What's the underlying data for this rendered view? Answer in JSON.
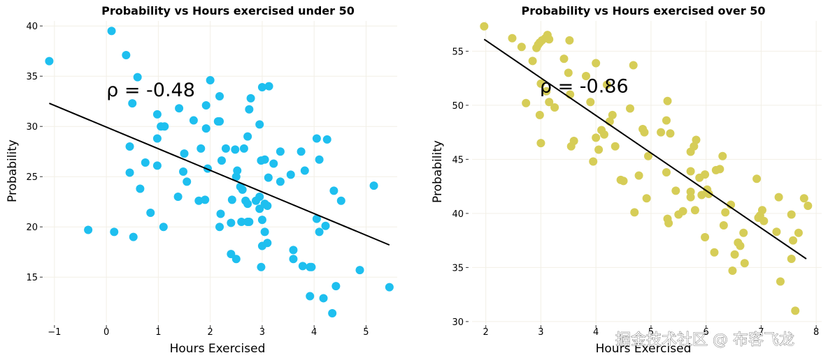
{
  "chart_data": [
    {
      "type": "scatter",
      "title": "Probability vs Hours exercised under 50",
      "xlabel": "Hours Exercised",
      "ylabel": "Probability",
      "xlim": [
        -1.2,
        5.6
      ],
      "ylim": [
        10.5,
        40.5
      ],
      "xticks": [
        -1,
        0,
        1,
        2,
        3,
        4,
        5
      ],
      "xtick_labels": [
        "−1",
        "0",
        "1",
        "2",
        "3",
        "4",
        "5"
      ],
      "yticks": [
        15,
        20,
        25,
        30,
        35,
        40
      ],
      "ytick_labels": [
        "15",
        "20",
        "25",
        "30",
        "35",
        "40"
      ],
      "grid": true,
      "point_color": "#1ebfef",
      "annotation": {
        "text": "ρ = -0.48",
        "x": 0.0,
        "y": 33.0
      },
      "regression_line": {
        "x": [
          -1.1,
          5.45
        ],
        "y": [
          32.3,
          18.2
        ],
        "color": "#000000"
      },
      "points": [
        [
          -1.1,
          36.5
        ],
        [
          0.1,
          39.5
        ],
        [
          0.38,
          37.1
        ],
        [
          0.6,
          34.9
        ],
        [
          0.5,
          32.3
        ],
        [
          -0.35,
          19.7
        ],
        [
          0.15,
          19.5
        ],
        [
          0.52,
          19.0
        ],
        [
          1.1,
          20.0
        ],
        [
          0.85,
          21.4
        ],
        [
          0.65,
          23.8
        ],
        [
          0.45,
          25.4
        ],
        [
          0.75,
          26.4
        ],
        [
          0.98,
          26.1
        ],
        [
          0.45,
          28.0
        ],
        [
          0.98,
          28.8
        ],
        [
          1.05,
          30.0
        ],
        [
          1.12,
          30.0
        ],
        [
          0.98,
          31.2
        ],
        [
          1.4,
          31.8
        ],
        [
          1.38,
          23.0
        ],
        [
          1.48,
          25.5
        ],
        [
          1.55,
          24.5
        ],
        [
          1.5,
          27.3
        ],
        [
          1.68,
          30.6
        ],
        [
          1.92,
          29.8
        ],
        [
          1.82,
          27.8
        ],
        [
          1.78,
          22.6
        ],
        [
          1.9,
          22.7
        ],
        [
          1.92,
          32.1
        ],
        [
          1.95,
          25.8
        ],
        [
          2.0,
          34.6
        ],
        [
          2.18,
          33.0
        ],
        [
          2.15,
          30.5
        ],
        [
          2.18,
          30.5
        ],
        [
          2.22,
          26.6
        ],
        [
          2.3,
          27.8
        ],
        [
          2.2,
          21.3
        ],
        [
          2.18,
          20.0
        ],
        [
          2.4,
          20.4
        ],
        [
          2.42,
          22.7
        ],
        [
          2.4,
          17.3
        ],
        [
          2.5,
          16.8
        ],
        [
          2.5,
          25.0
        ],
        [
          2.48,
          27.7
        ],
        [
          2.52,
          25.6
        ],
        [
          2.58,
          24.0
        ],
        [
          2.62,
          23.7
        ],
        [
          2.68,
          22.6
        ],
        [
          2.72,
          22.3
        ],
        [
          2.6,
          20.5
        ],
        [
          2.72,
          20.5
        ],
        [
          2.75,
          20.5
        ],
        [
          2.65,
          27.8
        ],
        [
          2.72,
          29.0
        ],
        [
          2.75,
          31.7
        ],
        [
          2.78,
          32.8
        ],
        [
          2.88,
          22.6
        ],
        [
          2.95,
          23.0
        ],
        [
          2.95,
          21.8
        ],
        [
          3.0,
          20.7
        ],
        [
          3.05,
          22.3
        ],
        [
          3.1,
          22.1
        ],
        [
          3.0,
          18.1
        ],
        [
          3.05,
          19.5
        ],
        [
          3.1,
          18.4
        ],
        [
          2.98,
          16.0
        ],
        [
          2.95,
          30.2
        ],
        [
          2.98,
          26.6
        ],
        [
          3.05,
          26.7
        ],
        [
          3.12,
          24.9
        ],
        [
          3.0,
          33.9
        ],
        [
          3.13,
          34.0
        ],
        [
          3.22,
          26.3
        ],
        [
          3.35,
          24.5
        ],
        [
          3.35,
          27.5
        ],
        [
          3.55,
          25.2
        ],
        [
          3.6,
          17.7
        ],
        [
          3.6,
          16.8
        ],
        [
          3.78,
          16.1
        ],
        [
          3.92,
          16.0
        ],
        [
          3.95,
          16.0
        ],
        [
          3.75,
          27.5
        ],
        [
          3.82,
          25.6
        ],
        [
          4.05,
          28.8
        ],
        [
          4.05,
          20.8
        ],
        [
          4.1,
          19.5
        ],
        [
          4.1,
          26.7
        ],
        [
          4.25,
          28.7
        ],
        [
          4.22,
          20.1
        ],
        [
          4.38,
          23.6
        ],
        [
          4.52,
          22.6
        ],
        [
          3.92,
          13.1
        ],
        [
          4.18,
          12.9
        ],
        [
          4.42,
          14.1
        ],
        [
          4.35,
          11.4
        ],
        [
          4.88,
          15.7
        ],
        [
          5.15,
          24.1
        ],
        [
          5.45,
          14.0
        ]
      ]
    },
    {
      "type": "scatter",
      "title": "Probability vs Hours exercised over 50",
      "xlabel": "Hours Exercised",
      "ylabel": "Probability",
      "xlim": [
        1.75,
        8.1
      ],
      "ylim": [
        29.8,
        57.8
      ],
      "xticks": [
        2,
        3,
        4,
        5,
        6,
        7,
        8
      ],
      "xtick_labels": [
        "2",
        "3",
        "4",
        "5",
        "6",
        "7",
        "8"
      ],
      "yticks": [
        30,
        35,
        40,
        45,
        50,
        55
      ],
      "ytick_labels": [
        "30",
        "35",
        "40",
        "45",
        "50",
        "55"
      ],
      "grid": true,
      "point_color": "#d6cd57",
      "annotation": {
        "text": "ρ = -0.86",
        "x": 2.98,
        "y": 51.2
      },
      "regression_line": {
        "x": [
          1.97,
          7.82
        ],
        "y": [
          56.1,
          35.8
        ],
        "color": "#000000"
      },
      "points": [
        [
          1.97,
          57.3
        ],
        [
          2.48,
          56.2
        ],
        [
          2.65,
          55.4
        ],
        [
          2.73,
          50.2
        ],
        [
          2.85,
          54.1
        ],
        [
          2.92,
          55.3
        ],
        [
          2.95,
          55.6
        ],
        [
          2.98,
          55.8
        ],
        [
          3.02,
          56.0
        ],
        [
          3.08,
          56.2
        ],
        [
          3.12,
          56.5
        ],
        [
          3.15,
          56.1
        ],
        [
          3.0,
          52.0
        ],
        [
          2.98,
          49.1
        ],
        [
          3.0,
          46.5
        ],
        [
          3.1,
          51.3
        ],
        [
          3.15,
          50.3
        ],
        [
          3.25,
          49.8
        ],
        [
          3.42,
          54.3
        ],
        [
          3.5,
          53.0
        ],
        [
          3.52,
          56.0
        ],
        [
          3.53,
          51.0
        ],
        [
          3.55,
          46.2
        ],
        [
          3.6,
          46.7
        ],
        [
          3.82,
          52.7
        ],
        [
          3.9,
          50.3
        ],
        [
          3.95,
          44.8
        ],
        [
          4.0,
          53.9
        ],
        [
          4.0,
          47.0
        ],
        [
          4.05,
          45.9
        ],
        [
          4.1,
          47.7
        ],
        [
          4.15,
          47.3
        ],
        [
          4.2,
          51.9
        ],
        [
          4.25,
          48.5
        ],
        [
          4.3,
          49.1
        ],
        [
          4.35,
          46.2
        ],
        [
          4.45,
          43.1
        ],
        [
          4.5,
          43.0
        ],
        [
          4.62,
          49.7
        ],
        [
          4.68,
          53.7
        ],
        [
          4.7,
          40.1
        ],
        [
          4.78,
          43.5
        ],
        [
          4.85,
          47.8
        ],
        [
          4.88,
          47.5
        ],
        [
          4.95,
          45.3
        ],
        [
          4.92,
          41.4
        ],
        [
          5.18,
          47.5
        ],
        [
          5.28,
          48.6
        ],
        [
          5.3,
          50.4
        ],
        [
          5.35,
          47.4
        ],
        [
          5.28,
          43.8
        ],
        [
          5.3,
          39.5
        ],
        [
          5.32,
          39.1
        ],
        [
          5.45,
          42.1
        ],
        [
          5.5,
          39.9
        ],
        [
          5.58,
          40.2
        ],
        [
          5.72,
          45.7
        ],
        [
          5.72,
          43.9
        ],
        [
          5.78,
          46.2
        ],
        [
          5.82,
          46.8
        ],
        [
          5.72,
          42.0
        ],
        [
          5.72,
          41.5
        ],
        [
          5.8,
          40.3
        ],
        [
          5.88,
          43.3
        ],
        [
          5.92,
          41.7
        ],
        [
          5.98,
          43.6
        ],
        [
          6.02,
          42.2
        ],
        [
          6.05,
          41.8
        ],
        [
          5.98,
          37.8
        ],
        [
          6.15,
          36.4
        ],
        [
          6.18,
          44.0
        ],
        [
          6.25,
          44.1
        ],
        [
          6.3,
          45.3
        ],
        [
          6.32,
          38.9
        ],
        [
          6.35,
          40.1
        ],
        [
          6.45,
          40.8
        ],
        [
          6.48,
          34.7
        ],
        [
          6.52,
          36.2
        ],
        [
          6.58,
          37.3
        ],
        [
          6.62,
          37.0
        ],
        [
          6.7,
          35.4
        ],
        [
          6.68,
          38.2
        ],
        [
          6.92,
          43.2
        ],
        [
          6.95,
          39.6
        ],
        [
          7.02,
          40.3
        ],
        [
          7.05,
          39.3
        ],
        [
          6.98,
          39.8
        ],
        [
          7.28,
          38.3
        ],
        [
          7.35,
          33.7
        ],
        [
          7.32,
          41.5
        ],
        [
          7.55,
          39.9
        ],
        [
          7.58,
          37.5
        ],
        [
          7.68,
          38.2
        ],
        [
          7.55,
          35.8
        ],
        [
          7.62,
          31.0
        ],
        [
          7.78,
          41.4
        ],
        [
          7.85,
          40.7
        ]
      ]
    }
  ],
  "watermark": "掘金技术社区 @ 布客飞龙"
}
